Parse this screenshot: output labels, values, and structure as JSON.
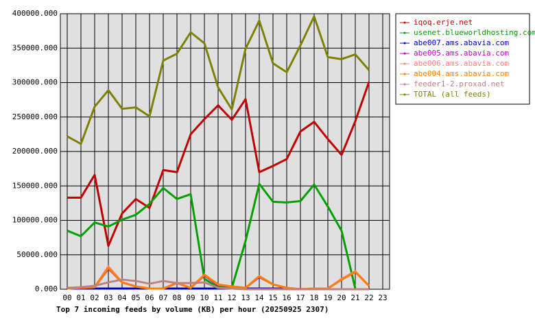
{
  "chart_data": {
    "type": "line",
    "title": "Top 7 incoming feeds by volume (KB) per hour (20250925 2307)",
    "categories": [
      "00",
      "01",
      "02",
      "03",
      "04",
      "05",
      "06",
      "07",
      "08",
      "09",
      "10",
      "11",
      "12",
      "13",
      "14",
      "15",
      "16",
      "17",
      "18",
      "19",
      "20",
      "21",
      "22",
      "23"
    ],
    "ylim": [
      0,
      400000
    ],
    "yticks": [
      {
        "value": 0,
        "label": "0.000"
      },
      {
        "value": 50000,
        "label": "50000.000"
      },
      {
        "value": 100000,
        "label": "100000.000"
      },
      {
        "value": 150000,
        "label": "150000.000"
      },
      {
        "value": 200000,
        "label": "200000.000"
      },
      {
        "value": 250000,
        "label": "250000.000"
      },
      {
        "value": 300000,
        "label": "300000.000"
      },
      {
        "value": 350000,
        "label": "350000.000"
      },
      {
        "value": 400000,
        "label": "400000.000"
      }
    ],
    "grid": true,
    "legend": "right",
    "series": [
      {
        "name": "iqoq.erje.net",
        "color": "#c00000",
        "values": [
          133000,
          133000,
          166000,
          63000,
          110000,
          131000,
          118000,
          173000,
          170000,
          225000,
          247000,
          267000,
          246000,
          276000,
          170000,
          179000,
          189000,
          229000,
          243000,
          218000,
          195000,
          244000,
          301000,
          null
        ]
      },
      {
        "name": "usenet.blueworldhosting.com",
        "color": "#00a000",
        "values": [
          85000,
          77000,
          97000,
          91000,
          101000,
          108000,
          124000,
          147000,
          131000,
          138000,
          15000,
          3000,
          2000,
          70000,
          153000,
          127000,
          126000,
          128000,
          152000,
          120000,
          85000,
          1000,
          null,
          null
        ]
      },
      {
        "name": "abe007.ams.abavia.com",
        "color": "#0000c0",
        "values": [
          1000,
          1000,
          1000,
          1000,
          1000,
          1000,
          1000,
          1000,
          1000,
          1000,
          1000,
          1000,
          1000,
          1000,
          1000,
          1000,
          1000,
          0,
          0,
          0,
          0,
          0,
          0,
          null
        ]
      },
      {
        "name": "abe005.ams.abavia.com",
        "color": "#c000c0",
        "values": [
          1000,
          2000,
          3000,
          30000,
          10000,
          4000,
          1000,
          1000,
          9000,
          2000,
          20000,
          6000,
          4000,
          2000,
          18000,
          7000,
          2000,
          0,
          1000,
          1000,
          14000,
          25000,
          5000,
          null
        ]
      },
      {
        "name": "abe006.ams.abavia.com",
        "color": "#ff8080",
        "values": [
          1000,
          2000,
          3000,
          33000,
          10000,
          4000,
          1000,
          1000,
          9000,
          2000,
          21000,
          7000,
          4000,
          2000,
          19000,
          7000,
          2000,
          0,
          1000,
          1000,
          15000,
          26000,
          5000,
          null
        ]
      },
      {
        "name": "abe004.ams.abavia.com",
        "color": "#ff8000",
        "values": [
          1000,
          2000,
          3000,
          31000,
          10000,
          4000,
          1000,
          1000,
          9000,
          2000,
          21000,
          7000,
          4000,
          2000,
          19000,
          7000,
          2000,
          0,
          1000,
          1000,
          14000,
          25000,
          5000,
          null
        ]
      },
      {
        "name": "feeder1-2.proxad.net",
        "color": "#c08080",
        "values": [
          2000,
          3000,
          5000,
          10000,
          14000,
          12000,
          8000,
          12000,
          9000,
          9000,
          10000,
          2000,
          1000,
          0,
          0,
          0,
          0,
          0,
          0,
          0,
          0,
          0,
          0,
          null
        ]
      },
      {
        "name": "TOTAL (all feeds)",
        "color": "#808000",
        "values": [
          222000,
          211000,
          265000,
          289000,
          262000,
          264000,
          251000,
          332000,
          342000,
          373000,
          357000,
          293000,
          261000,
          349000,
          390000,
          328000,
          315000,
          354000,
          396000,
          337000,
          334000,
          341000,
          318000,
          null
        ]
      }
    ]
  }
}
